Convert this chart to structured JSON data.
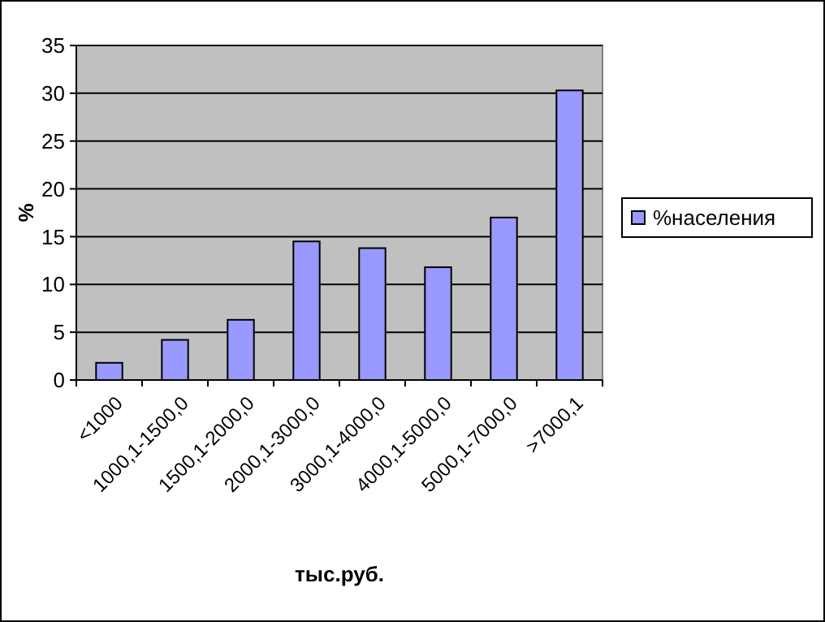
{
  "chart_data": {
    "type": "bar",
    "xlabel": "тыс.руб.",
    "ylabel": "%",
    "categories": [
      "<1000",
      "1000,1-1500,0",
      "1500,1-2000,0",
      "2000,1-3000,0",
      "3000,1-4000,0",
      "4000,1-5000,0",
      "5000,1-7000,0",
      ">7000,1"
    ],
    "series": [
      {
        "name": "%населения",
        "color": "#9999ff",
        "values": [
          1.8,
          4.2,
          6.3,
          14.5,
          13.8,
          11.8,
          17.0,
          30.3
        ]
      }
    ],
    "ylim": [
      0,
      35
    ],
    "yticks": [
      0,
      5,
      10,
      15,
      20,
      25,
      30,
      35
    ],
    "grid": "y",
    "legend": "right"
  }
}
